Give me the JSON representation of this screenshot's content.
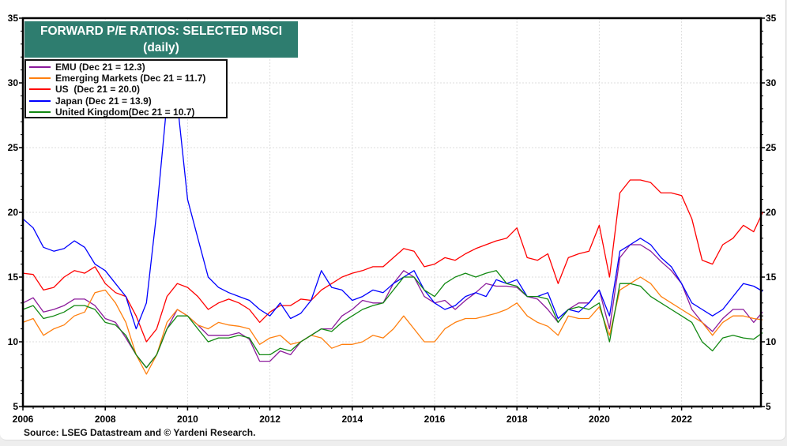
{
  "chart_data": {
    "type": "line",
    "title": "FORWARD P/E RATIOS: SELECTED MSCI",
    "subtitle": "(daily)",
    "xlabel": "",
    "ylabel": "",
    "xlim": [
      2006,
      2023.97
    ],
    "ylim": [
      5,
      35
    ],
    "x_ticks": [
      "2006",
      "2008",
      "2010",
      "2012",
      "2014",
      "2016",
      "2018",
      "2020",
      "2022"
    ],
    "y_ticks": [
      "5",
      "10",
      "15",
      "20",
      "25",
      "30",
      "35"
    ],
    "y_axis_sides": "left-and-right",
    "grid": true,
    "legend_position": "top-left",
    "x": [
      2006,
      2006.25,
      2006.5,
      2006.75,
      2007,
      2007.25,
      2007.5,
      2007.75,
      2008,
      2008.25,
      2008.5,
      2008.75,
      2009,
      2009.25,
      2009.5,
      2009.75,
      2010,
      2010.25,
      2010.5,
      2010.75,
      2011,
      2011.25,
      2011.5,
      2011.75,
      2012,
      2012.25,
      2012.5,
      2012.75,
      2013,
      2013.25,
      2013.5,
      2013.75,
      2014,
      2014.25,
      2014.5,
      2014.75,
      2015,
      2015.25,
      2015.5,
      2015.75,
      2016,
      2016.25,
      2016.5,
      2016.75,
      2017,
      2017.25,
      2017.5,
      2017.75,
      2018,
      2018.25,
      2018.5,
      2018.75,
      2019,
      2019.25,
      2019.5,
      2019.75,
      2020,
      2020.25,
      2020.5,
      2020.75,
      2021,
      2021.25,
      2021.5,
      2021.75,
      2022,
      2022.25,
      2022.5,
      2022.75,
      2023,
      2023.25,
      2023.5,
      2023.75,
      2023.97
    ],
    "series": [
      {
        "name": "EMU (Dec 21 = 12.3)",
        "color": "#8b1a9b",
        "values": [
          13.0,
          13.4,
          12.3,
          12.5,
          12.8,
          13.3,
          13.3,
          12.8,
          11.8,
          11.5,
          10.3,
          9.0,
          8.0,
          9.0,
          11.0,
          12.5,
          12.0,
          11.3,
          10.5,
          10.5,
          10.5,
          10.7,
          10.2,
          8.5,
          8.5,
          9.3,
          9.0,
          10.0,
          10.5,
          11.0,
          11.0,
          12.0,
          12.5,
          13.2,
          13.0,
          13.0,
          14.5,
          15.5,
          15.0,
          13.5,
          13.0,
          13.2,
          12.5,
          13.2,
          13.8,
          14.5,
          14.3,
          14.3,
          14.2,
          13.5,
          13.3,
          12.5,
          11.5,
          12.5,
          13.0,
          13.0,
          14.0,
          11.0,
          16.5,
          17.5,
          17.5,
          17.0,
          16.2,
          15.5,
          14.5,
          12.5,
          11.5,
          10.8,
          11.8,
          12.5,
          12.5,
          11.5,
          12.3
        ]
      },
      {
        "name": "Emerging Markets (Dec 21 = 11.7)",
        "color": "#ff7f0e",
        "values": [
          11.5,
          11.8,
          10.5,
          11.0,
          11.3,
          12.0,
          12.3,
          13.8,
          14.0,
          13.0,
          11.5,
          9.0,
          7.5,
          9.0,
          11.5,
          12.5,
          12.0,
          11.3,
          11.0,
          11.5,
          11.3,
          11.2,
          11.0,
          9.8,
          10.3,
          10.5,
          9.8,
          10.0,
          10.5,
          10.3,
          9.5,
          9.8,
          9.8,
          10.0,
          10.5,
          10.3,
          11.0,
          12.0,
          11.0,
          10.0,
          10.0,
          11.0,
          11.5,
          11.8,
          11.8,
          12.0,
          12.2,
          12.5,
          13.0,
          12.0,
          11.5,
          11.2,
          10.5,
          12.0,
          11.8,
          11.8,
          12.7,
          10.5,
          14.0,
          14.5,
          15.0,
          14.5,
          13.5,
          13.0,
          12.5,
          12.0,
          11.5,
          10.5,
          11.5,
          12.0,
          12.0,
          11.8,
          11.7
        ]
      },
      {
        "name": "US  (Dec 21 = 20.0)",
        "color": "#ff0000",
        "values": [
          15.3,
          15.2,
          14.0,
          14.2,
          15.0,
          15.5,
          15.3,
          15.8,
          14.5,
          13.8,
          13.5,
          12.0,
          10.0,
          11.0,
          13.5,
          14.5,
          14.2,
          13.5,
          12.5,
          13.0,
          13.3,
          13.0,
          12.5,
          11.5,
          12.3,
          12.8,
          12.8,
          13.3,
          13.2,
          14.0,
          14.5,
          15.0,
          15.3,
          15.5,
          15.8,
          15.8,
          16.5,
          17.2,
          17.0,
          15.8,
          16.0,
          16.5,
          16.3,
          16.8,
          17.2,
          17.5,
          17.8,
          18.0,
          18.8,
          16.5,
          16.3,
          16.8,
          14.5,
          16.5,
          16.8,
          17.0,
          19.0,
          15.0,
          21.5,
          22.5,
          22.5,
          22.3,
          21.5,
          21.5,
          21.3,
          19.5,
          16.3,
          16.0,
          17.5,
          18.0,
          19.0,
          18.5,
          20.0
        ]
      },
      {
        "name": "Japan (Dec 21 = 13.9)",
        "color": "#0000ff",
        "values": [
          19.5,
          18.8,
          17.3,
          17.0,
          17.2,
          17.8,
          17.3,
          16.0,
          15.5,
          14.5,
          13.5,
          11.0,
          13.0,
          20.0,
          28.5,
          28.5,
          21.0,
          18.0,
          15.0,
          14.2,
          13.8,
          13.5,
          13.2,
          12.5,
          12.0,
          13.0,
          11.8,
          12.2,
          13.2,
          15.5,
          14.2,
          14.0,
          13.2,
          13.5,
          14.0,
          13.8,
          14.5,
          15.0,
          15.5,
          14.0,
          13.0,
          12.5,
          12.8,
          13.5,
          13.8,
          13.5,
          14.8,
          14.5,
          14.8,
          13.5,
          13.5,
          13.8,
          11.8,
          12.5,
          12.3,
          13.0,
          14.0,
          12.0,
          17.0,
          17.5,
          18.0,
          17.5,
          16.5,
          15.8,
          14.5,
          13.0,
          12.5,
          12.0,
          12.5,
          13.5,
          14.5,
          14.3,
          13.9
        ]
      },
      {
        "name": "United Kingdom(Dec 21 = 10.7)",
        "color": "#118811",
        "values": [
          12.5,
          12.8,
          11.8,
          12.0,
          12.3,
          12.8,
          12.8,
          12.5,
          11.5,
          11.3,
          10.5,
          9.0,
          8.0,
          9.0,
          11.0,
          12.0,
          12.0,
          11.0,
          10.0,
          10.3,
          10.3,
          10.5,
          10.3,
          9.0,
          9.0,
          9.5,
          9.3,
          10.0,
          10.5,
          11.0,
          10.8,
          11.5,
          12.0,
          12.5,
          12.8,
          13.0,
          14.0,
          15.0,
          15.0,
          14.0,
          13.5,
          14.5,
          15.0,
          15.3,
          15.0,
          15.3,
          15.5,
          14.5,
          14.3,
          13.5,
          13.5,
          13.3,
          11.5,
          12.5,
          12.7,
          12.5,
          13.0,
          10.0,
          14.5,
          14.5,
          14.3,
          13.5,
          13.0,
          12.5,
          12.0,
          11.5,
          10.0,
          9.3,
          10.3,
          10.5,
          10.3,
          10.2,
          10.7
        ]
      }
    ],
    "source": "Source: LSEG Datastream and © Yardeni Research."
  }
}
